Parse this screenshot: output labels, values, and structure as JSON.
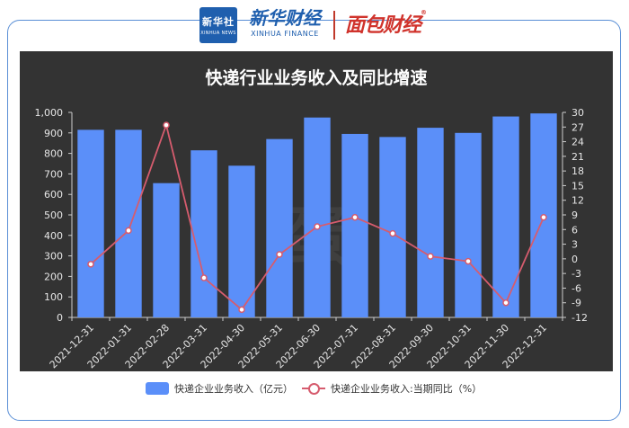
{
  "header": {
    "xinhua_logo_text": "新华社",
    "xinhua_logo_sub": "XINHUA NEWS",
    "brand_cn": "新华财经",
    "brand_en": "XINHUA FINANCE",
    "mianbao_text": "面包财经",
    "reg_mark": "®"
  },
  "watermark": "蛋",
  "chart_data": {
    "type": "bar",
    "title": "快递行业业务收入及同比增速",
    "categories": [
      "2021-12-31",
      "2022-01-31",
      "2022-02-28",
      "2022-03-31",
      "2022-04-30",
      "2022-05-31",
      "2022-06-30",
      "2022-07-31",
      "2022-08-31",
      "2022-09-30",
      "2022-10-31",
      "2022-11-30",
      "2022-12-31"
    ],
    "series": [
      {
        "name": "快递企业业务收入（亿元）",
        "type": "bar",
        "axis": "left",
        "color": "#5b8ff9",
        "values": [
          915,
          915,
          655,
          815,
          740,
          870,
          975,
          895,
          880,
          925,
          900,
          980,
          995
        ]
      },
      {
        "name": "快递企业业务收入:当期同比（%）",
        "type": "line",
        "axis": "right",
        "color": "#d65c6e",
        "values": [
          -1.1,
          5.8,
          27.4,
          -3.9,
          -10.4,
          0.9,
          6.6,
          8.5,
          5.2,
          0.5,
          -0.5,
          -9.0,
          8.5
        ]
      }
    ],
    "y_left": {
      "min": 0,
      "max": 1000,
      "ticks": [
        "0",
        "100",
        "200",
        "300",
        "400",
        "500",
        "600",
        "700",
        "800",
        "900",
        "1,000"
      ]
    },
    "y_right": {
      "min": -12,
      "max": 30,
      "ticks": [
        "-12",
        "-9",
        "-6",
        "-3",
        "0",
        "3",
        "6",
        "9",
        "12",
        "15",
        "18",
        "21",
        "24",
        "27",
        "30"
      ]
    },
    "grid": false,
    "legend_position": "bottom"
  }
}
